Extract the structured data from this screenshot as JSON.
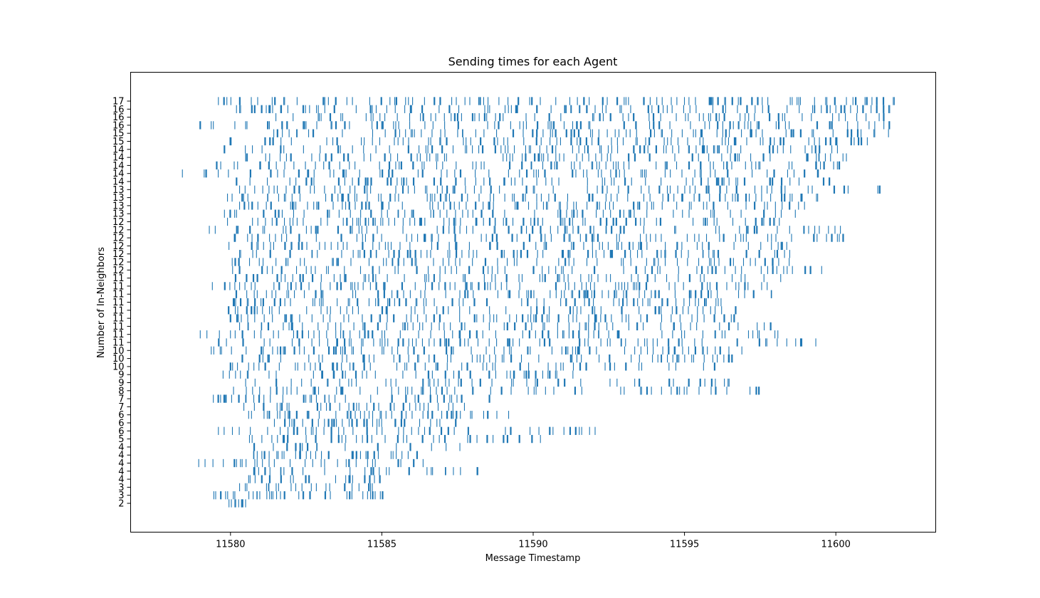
{
  "chart_data": {
    "type": "eventplot",
    "title": "Sending times for each Agent",
    "xlabel": "Message Timestamp",
    "ylabel": "Number of In-Neighbors",
    "xlim": [
      11576.7,
      11603.3
    ],
    "xticks": [
      11580,
      11585,
      11590,
      11595,
      11600
    ],
    "xtick_labels": [
      "11580",
      "11585",
      "11590",
      "11595",
      "11600"
    ],
    "series_color": "#1f77b4",
    "grid": false,
    "rows": [
      {
        "label": "2",
        "start": 11579.95,
        "end": 11580.5,
        "density": 0.95,
        "min_gap": 0.0
      },
      {
        "label": "3",
        "start": 11579.45,
        "end": 11585.05,
        "density": 0.55,
        "min_gap": 0.0
      },
      {
        "label": "3",
        "start": 11580.3,
        "end": 11584.8,
        "density": 0.5,
        "min_gap": 0.0
      },
      {
        "label": "4",
        "start": 11580.6,
        "end": 11585.0,
        "density": 0.5,
        "min_gap": 0.0
      },
      {
        "label": "4",
        "start": 11580.6,
        "end": 11588.5,
        "density": 0.45,
        "min_gap": 0.0
      },
      {
        "label": "4",
        "start": 11578.95,
        "end": 11586.9,
        "density": 0.5,
        "min_gap": 0.0
      },
      {
        "label": "4",
        "start": 11580.6,
        "end": 11586.2,
        "density": 0.5,
        "min_gap": 0.0
      },
      {
        "label": "4",
        "start": 11580.5,
        "end": 11588.4,
        "density": 0.45,
        "min_gap": 0.0
      },
      {
        "label": "5",
        "start": 11580.6,
        "end": 11590.4,
        "density": 0.45,
        "min_gap": 0.0
      },
      {
        "label": "6",
        "start": 11579.6,
        "end": 11592.8,
        "density": 0.45,
        "min_gap": 0.0
      },
      {
        "label": "6",
        "start": 11580.9,
        "end": 11587.8,
        "density": 0.5,
        "min_gap": 0.0
      },
      {
        "label": "6",
        "start": 11580.6,
        "end": 11589.35,
        "density": 0.5,
        "min_gap": 0.0
      },
      {
        "label": "7",
        "start": 11580.3,
        "end": 11588.0,
        "density": 0.5,
        "min_gap": 0.0
      },
      {
        "label": "7",
        "start": 11579.3,
        "end": 11588.9,
        "density": 0.5,
        "min_gap": 0.0
      },
      {
        "label": "8",
        "start": 11580.1,
        "end": 11597.8,
        "density": 0.45,
        "min_gap": 0.0
      },
      {
        "label": "9",
        "start": 11580.5,
        "end": 11596.7,
        "density": 0.45,
        "min_gap": 0.0
      },
      {
        "label": "9",
        "start": 11579.7,
        "end": 11591.5,
        "density": 0.45,
        "min_gap": 0.0
      },
      {
        "label": "10",
        "start": 11580.0,
        "end": 11596.0,
        "density": 0.45,
        "min_gap": 0.0
      },
      {
        "label": "10",
        "start": 11580.3,
        "end": 11596.8,
        "density": 0.45,
        "min_gap": 0.0
      },
      {
        "label": "10",
        "start": 11579.1,
        "end": 11596.9,
        "density": 0.45,
        "min_gap": 0.0
      },
      {
        "label": "11",
        "start": 11579.3,
        "end": 11599.8,
        "density": 0.45,
        "min_gap": 0.0
      },
      {
        "label": "11",
        "start": 11579.0,
        "end": 11598.2,
        "density": 0.45,
        "min_gap": 0.0
      },
      {
        "label": "11",
        "start": 11580.3,
        "end": 11598.0,
        "density": 0.45,
        "min_gap": 0.0
      },
      {
        "label": "11",
        "start": 11580.0,
        "end": 11596.7,
        "density": 0.45,
        "min_gap": 0.0
      },
      {
        "label": "11",
        "start": 11579.5,
        "end": 11596.7,
        "density": 0.45,
        "min_gap": 0.0
      },
      {
        "label": "11",
        "start": 11580.1,
        "end": 11596.5,
        "density": 0.45,
        "min_gap": 0.0
      },
      {
        "label": "11",
        "start": 11580.1,
        "end": 11598.2,
        "density": 0.45,
        "min_gap": 0.0
      },
      {
        "label": "11",
        "start": 11579.4,
        "end": 11598.1,
        "density": 0.45,
        "min_gap": 0.0
      },
      {
        "label": "11",
        "start": 11580.1,
        "end": 11598.2,
        "density": 0.45,
        "min_gap": 0.0
      },
      {
        "label": "12",
        "start": 11579.9,
        "end": 11599.6,
        "density": 0.45,
        "min_gap": 0.0
      },
      {
        "label": "12",
        "start": 11580.0,
        "end": 11598.6,
        "density": 0.45,
        "min_gap": 0.0
      },
      {
        "label": "12",
        "start": 11580.3,
        "end": 11598.6,
        "density": 0.45,
        "min_gap": 0.0
      },
      {
        "label": "12",
        "start": 11579.8,
        "end": 11598.5,
        "density": 0.45,
        "min_gap": 0.0
      },
      {
        "label": "12",
        "start": 11579.7,
        "end": 11600.4,
        "density": 0.45,
        "min_gap": 0.0
      },
      {
        "label": "12",
        "start": 11579.3,
        "end": 11600.5,
        "density": 0.45,
        "min_gap": 0.0
      },
      {
        "label": "12",
        "start": 11579.6,
        "end": 11598.3,
        "density": 0.45,
        "min_gap": 0.0
      },
      {
        "label": "13",
        "start": 11579.8,
        "end": 11599.4,
        "density": 0.45,
        "min_gap": 0.0
      },
      {
        "label": "13",
        "start": 11580.3,
        "end": 11599.1,
        "density": 0.45,
        "min_gap": 0.0
      },
      {
        "label": "13",
        "start": 11579.9,
        "end": 11599.5,
        "density": 0.45,
        "min_gap": 0.0
      },
      {
        "label": "13",
        "start": 11580.3,
        "end": 11601.5,
        "density": 0.45,
        "min_gap": 0.0
      },
      {
        "label": "14",
        "start": 11580.2,
        "end": 11600.0,
        "density": 0.45,
        "min_gap": 0.0
      },
      {
        "label": "14",
        "start": 11578.0,
        "end": 11599.6,
        "density": 0.45,
        "min_gap": 0.0
      },
      {
        "label": "14",
        "start": 11579.5,
        "end": 11600.6,
        "density": 0.45,
        "min_gap": 0.0
      },
      {
        "label": "14",
        "start": 11580.5,
        "end": 11600.4,
        "density": 0.45,
        "min_gap": 0.0
      },
      {
        "label": "14",
        "start": 11579.8,
        "end": 11600.4,
        "density": 0.45,
        "min_gap": 0.0
      },
      {
        "label": "15",
        "start": 11579.9,
        "end": 11601.1,
        "density": 0.45,
        "min_gap": 0.0
      },
      {
        "label": "15",
        "start": 11581.2,
        "end": 11601.9,
        "density": 0.45,
        "min_gap": 0.0
      },
      {
        "label": "16",
        "start": 11579.0,
        "end": 11601.8,
        "density": 0.45,
        "min_gap": 0.0
      },
      {
        "label": "16",
        "start": 11581.5,
        "end": 11601.6,
        "density": 0.45,
        "min_gap": 0.0
      },
      {
        "label": "16",
        "start": 11580.0,
        "end": 11601.8,
        "density": 0.45,
        "min_gap": 0.0
      },
      {
        "label": "17",
        "start": 11579.6,
        "end": 11602.0,
        "density": 0.45,
        "min_gap": 0.0
      }
    ]
  }
}
